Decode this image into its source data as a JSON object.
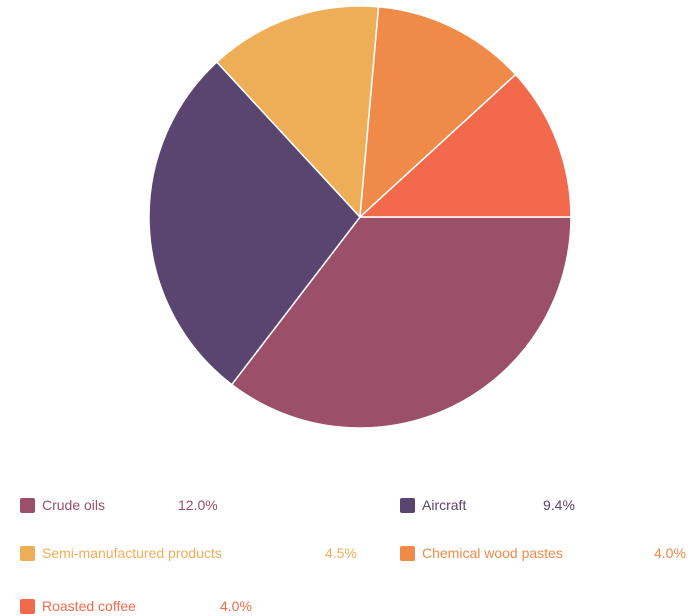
{
  "chart_data": {
    "type": "pie",
    "slices": [
      {
        "label": "Crude oils",
        "value": 12.0,
        "display": "12.0%",
        "color": "#9b4f69",
        "label_color": "#9b4f69",
        "value_color": "#9b4f69"
      },
      {
        "label": "Aircraft",
        "value": 9.4,
        "display": "9.4%",
        "color": "#5a4570",
        "label_color": "#5a4570",
        "value_color": "#5a4570"
      },
      {
        "label": "Semi-manufactured products",
        "value": 4.5,
        "display": "4.5%",
        "color": "#eeae57",
        "label_color": "#eeae57",
        "value_color": "#eeae57"
      },
      {
        "label": "Chemical wood pastes",
        "value": 4.0,
        "display": "4.0%",
        "color": "#f08a48",
        "label_color": "#f08a48",
        "value_color": "#f08a48"
      },
      {
        "label": "Roasted coffee",
        "value": 4.0,
        "display": "4.0%",
        "color": "#f26a4b",
        "label_color": "#f26a4b",
        "value_color": "#f26a4b"
      }
    ],
    "legend_position": "bottom",
    "start": "3 o'clock",
    "direction": "clockwise"
  }
}
